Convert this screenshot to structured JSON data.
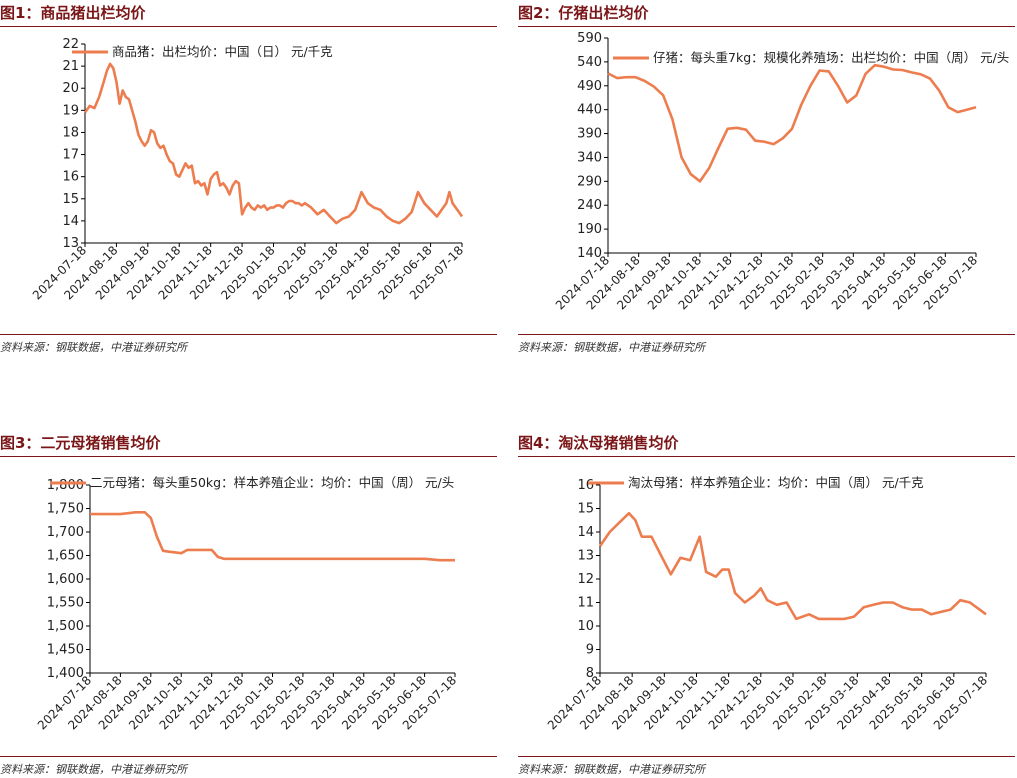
{
  "panels": [
    {
      "title": "图1：商品猪出栏均价",
      "source": "资料来源：钢联数据，中港证券研究所"
    },
    {
      "title": "图2：仔猪出栏均价",
      "source": "资料来源：钢联数据，中港证券研究所"
    },
    {
      "title": "图3：二元母猪销售均价",
      "source": "资料来源：钢联数据，中港证券研究所"
    },
    {
      "title": "图4：淘汰母猪销售均价",
      "source": "资料来源：钢联数据，中港证券研究所"
    }
  ],
  "line_color": "#ed7d4f",
  "chart_data": [
    {
      "type": "line",
      "legend": "商品猪：出栏均价：中国（日） 元/千克",
      "ylim": [
        13,
        22
      ],
      "yticks": [
        "13",
        "14",
        "15",
        "16",
        "17",
        "18",
        "19",
        "20",
        "21",
        "22"
      ],
      "xticks": [
        "2024-07-18",
        "2024-08-18",
        "2024-09-18",
        "2024-10-18",
        "2024-11-18",
        "2024-12-18",
        "2025-01-18",
        "2025-02-18",
        "2025-03-18",
        "2025-04-18",
        "2025-05-18",
        "2025-06-18",
        "2025-07-18"
      ],
      "x": [
        0,
        0.15,
        0.3,
        0.45,
        0.6,
        0.7,
        0.8,
        0.9,
        1.0,
        1.1,
        1.2,
        1.3,
        1.4,
        1.5,
        1.6,
        1.7,
        1.8,
        1.9,
        2.0,
        2.1,
        2.2,
        2.3,
        2.4,
        2.5,
        2.6,
        2.7,
        2.8,
        2.9,
        3.0,
        3.1,
        3.2,
        3.3,
        3.4,
        3.5,
        3.6,
        3.7,
        3.8,
        3.9,
        4.0,
        4.1,
        4.2,
        4.3,
        4.4,
        4.5,
        4.6,
        4.7,
        4.8,
        4.9,
        5.0,
        5.1,
        5.2,
        5.3,
        5.4,
        5.5,
        5.6,
        5.7,
        5.8,
        5.9,
        6.0,
        6.1,
        6.2,
        6.3,
        6.4,
        6.5,
        6.6,
        6.7,
        6.8,
        6.9,
        7.0,
        7.2,
        7.4,
        7.6,
        7.8,
        8.0,
        8.2,
        8.4,
        8.6,
        8.8,
        9.0,
        9.2,
        9.4,
        9.6,
        9.8,
        10.0,
        10.2,
        10.4,
        10.6,
        10.8,
        11.0,
        11.2,
        11.4,
        11.5,
        11.6,
        11.7,
        11.8,
        11.9,
        12.0
      ],
      "y": [
        18.9,
        19.2,
        19.1,
        19.6,
        20.3,
        20.8,
        21.1,
        20.9,
        20.3,
        19.3,
        19.9,
        19.6,
        19.5,
        19.0,
        18.5,
        17.9,
        17.6,
        17.4,
        17.6,
        18.1,
        18.0,
        17.5,
        17.3,
        17.4,
        17.0,
        16.7,
        16.6,
        16.1,
        16.0,
        16.3,
        16.6,
        16.4,
        16.5,
        15.7,
        15.8,
        15.6,
        15.7,
        15.2,
        15.9,
        16.1,
        16.2,
        15.6,
        15.7,
        15.5,
        15.2,
        15.6,
        15.8,
        15.7,
        14.3,
        14.6,
        14.8,
        14.6,
        14.5,
        14.7,
        14.6,
        14.7,
        14.5,
        14.6,
        14.6,
        14.7,
        14.7,
        14.6,
        14.8,
        14.9,
        14.9,
        14.8,
        14.8,
        14.7,
        14.8,
        14.6,
        14.3,
        14.5,
        14.2,
        13.9,
        14.1,
        14.2,
        14.5,
        15.3,
        14.8,
        14.6,
        14.5,
        14.2,
        14.0,
        13.9,
        14.1,
        14.4,
        15.3,
        14.8,
        14.5,
        14.2,
        14.6,
        14.8,
        15.3,
        14.8,
        14.6,
        14.4,
        14.2
      ]
    },
    {
      "type": "line",
      "legend": "仔猪：每头重7kg：规模化养殖场：出栏均价：中国（周） 元/头",
      "ylim": [
        140,
        590
      ],
      "yticks": [
        "140",
        "190",
        "240",
        "290",
        "340",
        "390",
        "440",
        "490",
        "540",
        "590"
      ],
      "xticks": [
        "2024-07-18",
        "2024-08-18",
        "2024-09-18",
        "2024-10-18",
        "2024-11-18",
        "2024-12-18",
        "2025-01-18",
        "2025-02-18",
        "2025-03-18",
        "2025-04-18",
        "2025-05-18",
        "2025-06-18",
        "2025-07-18"
      ],
      "x": [
        0,
        0.3,
        0.6,
        0.9,
        1.2,
        1.5,
        1.8,
        2.1,
        2.4,
        2.7,
        3.0,
        3.3,
        3.6,
        3.9,
        4.2,
        4.5,
        4.8,
        5.1,
        5.4,
        5.7,
        6.0,
        6.3,
        6.6,
        6.9,
        7.2,
        7.5,
        7.8,
        8.1,
        8.4,
        8.7,
        9.0,
        9.3,
        9.6,
        9.9,
        10.2,
        10.5,
        10.8,
        11.1,
        11.4,
        11.7,
        12.0
      ],
      "y": [
        516,
        506,
        508,
        508,
        500,
        488,
        470,
        420,
        340,
        305,
        290,
        318,
        360,
        400,
        402,
        398,
        375,
        373,
        368,
        380,
        400,
        450,
        490,
        522,
        520,
        490,
        455,
        470,
        515,
        533,
        530,
        524,
        523,
        518,
        514,
        505,
        480,
        445,
        435,
        440,
        445
      ]
    },
    {
      "type": "line",
      "legend": "二元母猪：每头重50kg：样本养殖企业：均价：中国（周） 元/头",
      "ylim": [
        1400,
        1800
      ],
      "yticks": [
        "1,400",
        "1,450",
        "1,500",
        "1,550",
        "1,600",
        "1,650",
        "1,700",
        "1,750",
        "1,800"
      ],
      "xticks": [
        "2024-07-18",
        "2024-08-18",
        "2024-09-18",
        "2024-10-18",
        "2024-11-18",
        "2024-12-18",
        "2025-01-18",
        "2025-02-18",
        "2025-03-18",
        "2025-04-18",
        "2025-05-18",
        "2025-06-18",
        "2025-07-18"
      ],
      "x": [
        0,
        0.5,
        1.0,
        1.5,
        1.8,
        2.0,
        2.2,
        2.4,
        2.6,
        3.0,
        3.2,
        3.4,
        4.0,
        4.2,
        4.4,
        5.0,
        5.5,
        6,
        7,
        8,
        9,
        10,
        11,
        11.5,
        12.0
      ],
      "y": [
        1738,
        1738,
        1738,
        1742,
        1742,
        1730,
        1690,
        1660,
        1658,
        1655,
        1662,
        1662,
        1662,
        1647,
        1643,
        1643,
        1643,
        1643,
        1643,
        1643,
        1643,
        1643,
        1643,
        1640,
        1640
      ]
    },
    {
      "type": "line",
      "legend": "淘汰母猪：样本养殖企业：均价：中国（周） 元/千克",
      "ylim": [
        8,
        16
      ],
      "yticks": [
        "8",
        "9",
        "10",
        "11",
        "12",
        "13",
        "14",
        "15",
        "16"
      ],
      "xticks": [
        "2024-07-18",
        "2024-08-18",
        "2024-09-18",
        "2024-10-18",
        "2024-11-18",
        "2024-12-18",
        "2025-01-18",
        "2025-02-18",
        "2025-03-18",
        "2025-04-18",
        "2025-05-18",
        "2025-06-18",
        "2025-07-18"
      ],
      "x": [
        0,
        0.3,
        0.6,
        0.9,
        1.1,
        1.3,
        1.6,
        1.9,
        2.2,
        2.5,
        2.8,
        3.1,
        3.3,
        3.6,
        3.8,
        4.0,
        4.2,
        4.5,
        4.8,
        5.0,
        5.2,
        5.5,
        5.8,
        6.1,
        6.3,
        6.5,
        6.8,
        7.0,
        7.3,
        7.6,
        7.9,
        8.2,
        8.5,
        8.8,
        9.1,
        9.4,
        9.7,
        10.0,
        10.3,
        10.6,
        10.9,
        11.2,
        11.5,
        11.8,
        12.0
      ],
      "y": [
        13.4,
        14.0,
        14.4,
        14.8,
        14.5,
        13.8,
        13.8,
        13.0,
        12.2,
        12.9,
        12.8,
        13.8,
        12.3,
        12.1,
        12.4,
        12.4,
        11.4,
        11.0,
        11.3,
        11.6,
        11.1,
        10.9,
        11.0,
        10.3,
        10.4,
        10.5,
        10.3,
        10.3,
        10.3,
        10.3,
        10.4,
        10.8,
        10.9,
        11.0,
        11.0,
        10.8,
        10.7,
        10.7,
        10.5,
        10.6,
        10.7,
        11.1,
        11.0,
        10.7,
        10.5
      ]
    }
  ]
}
